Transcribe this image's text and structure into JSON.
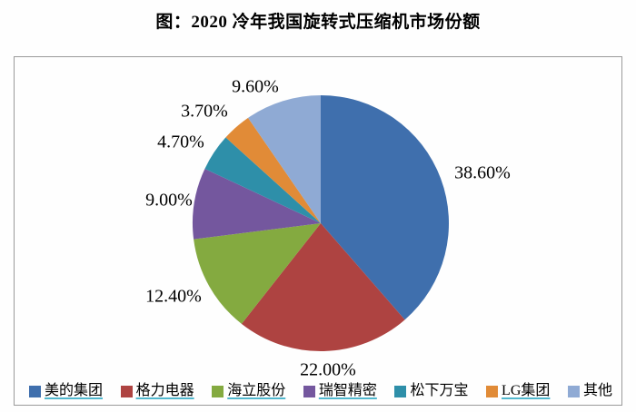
{
  "title": "图：2020 冷年我国旋转式压缩机市场份额",
  "chart_data": {
    "type": "pie",
    "title": "图：2020 冷年我国旋转式压缩机市场份额",
    "start_angle_deg": 0,
    "direction": "clockwise",
    "legend_position": "bottom",
    "underline_color": "#52B8CE",
    "slices": [
      {
        "label": "美的集团",
        "value": 38.6,
        "display": "38.60%",
        "color": "#3F6FAD",
        "legend_underlined": true
      },
      {
        "label": "格力电器",
        "value": 22.0,
        "display": "22.00%",
        "color": "#AE4341",
        "legend_underlined": true
      },
      {
        "label": "海立股份",
        "value": 12.4,
        "display": "12.40%",
        "color": "#84AA40",
        "legend_underlined": true
      },
      {
        "label": "瑞智精密",
        "value": 9.0,
        "display": "9.00%",
        "color": "#74579E",
        "legend_underlined": true
      },
      {
        "label": "松下万宝",
        "value": 4.7,
        "display": "4.70%",
        "color": "#2E8FA9",
        "legend_underlined": false
      },
      {
        "label": "LG集团",
        "value": 3.7,
        "display": "3.70%",
        "color": "#E18B37",
        "legend_underlined": true
      },
      {
        "label": "其他",
        "value": 9.6,
        "display": "9.60%",
        "color": "#8FAAD4",
        "legend_underlined": false
      }
    ]
  }
}
